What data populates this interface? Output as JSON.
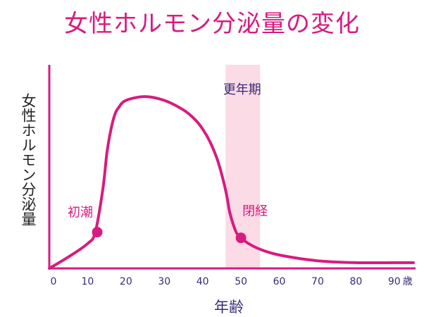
{
  "chart_data": {
    "type": "line",
    "title": "女性ホルモン分泌量の変化",
    "xlabel": "年齢",
    "ylabel": "女性ホルモン分泌量",
    "xlim": [
      0,
      95
    ],
    "x_ticks": [
      0,
      10,
      20,
      30,
      40,
      50,
      60,
      70,
      80,
      90
    ],
    "x_tick_labels": [
      "0",
      "10",
      "20",
      "30",
      "40",
      "50",
      "60",
      "70",
      "80",
      "90"
    ],
    "x_unit_label": "歳",
    "y_ticks_shown": false,
    "ylim": [
      0,
      1
    ],
    "grid": false,
    "series": [
      {
        "color": "#d81b7f",
        "x": [
          0,
          5,
          10,
          12,
          14,
          15,
          16,
          17,
          18,
          20,
          25,
          30,
          35,
          38,
          40,
          42,
          44,
          46,
          47,
          48,
          49,
          50,
          52,
          55,
          60,
          70,
          80,
          90,
          95
        ],
        "y": [
          0.0,
          0.06,
          0.13,
          0.19,
          0.42,
          0.6,
          0.72,
          0.8,
          0.84,
          0.88,
          0.9,
          0.88,
          0.83,
          0.78,
          0.73,
          0.66,
          0.56,
          0.41,
          0.3,
          0.23,
          0.18,
          0.16,
          0.13,
          0.1,
          0.07,
          0.04,
          0.03,
          0.03,
          0.03
        ]
      }
    ],
    "highlight_band": {
      "x_range": [
        46,
        55
      ],
      "label": "更年期",
      "color": "#fadbe6"
    },
    "annotations": [
      {
        "text": "初潮",
        "x": 12.5,
        "y": 0.19,
        "color": "#d81b7f"
      },
      {
        "text": "閉経",
        "x": 50,
        "y": 0.16,
        "color": "#d81b7f"
      }
    ]
  }
}
